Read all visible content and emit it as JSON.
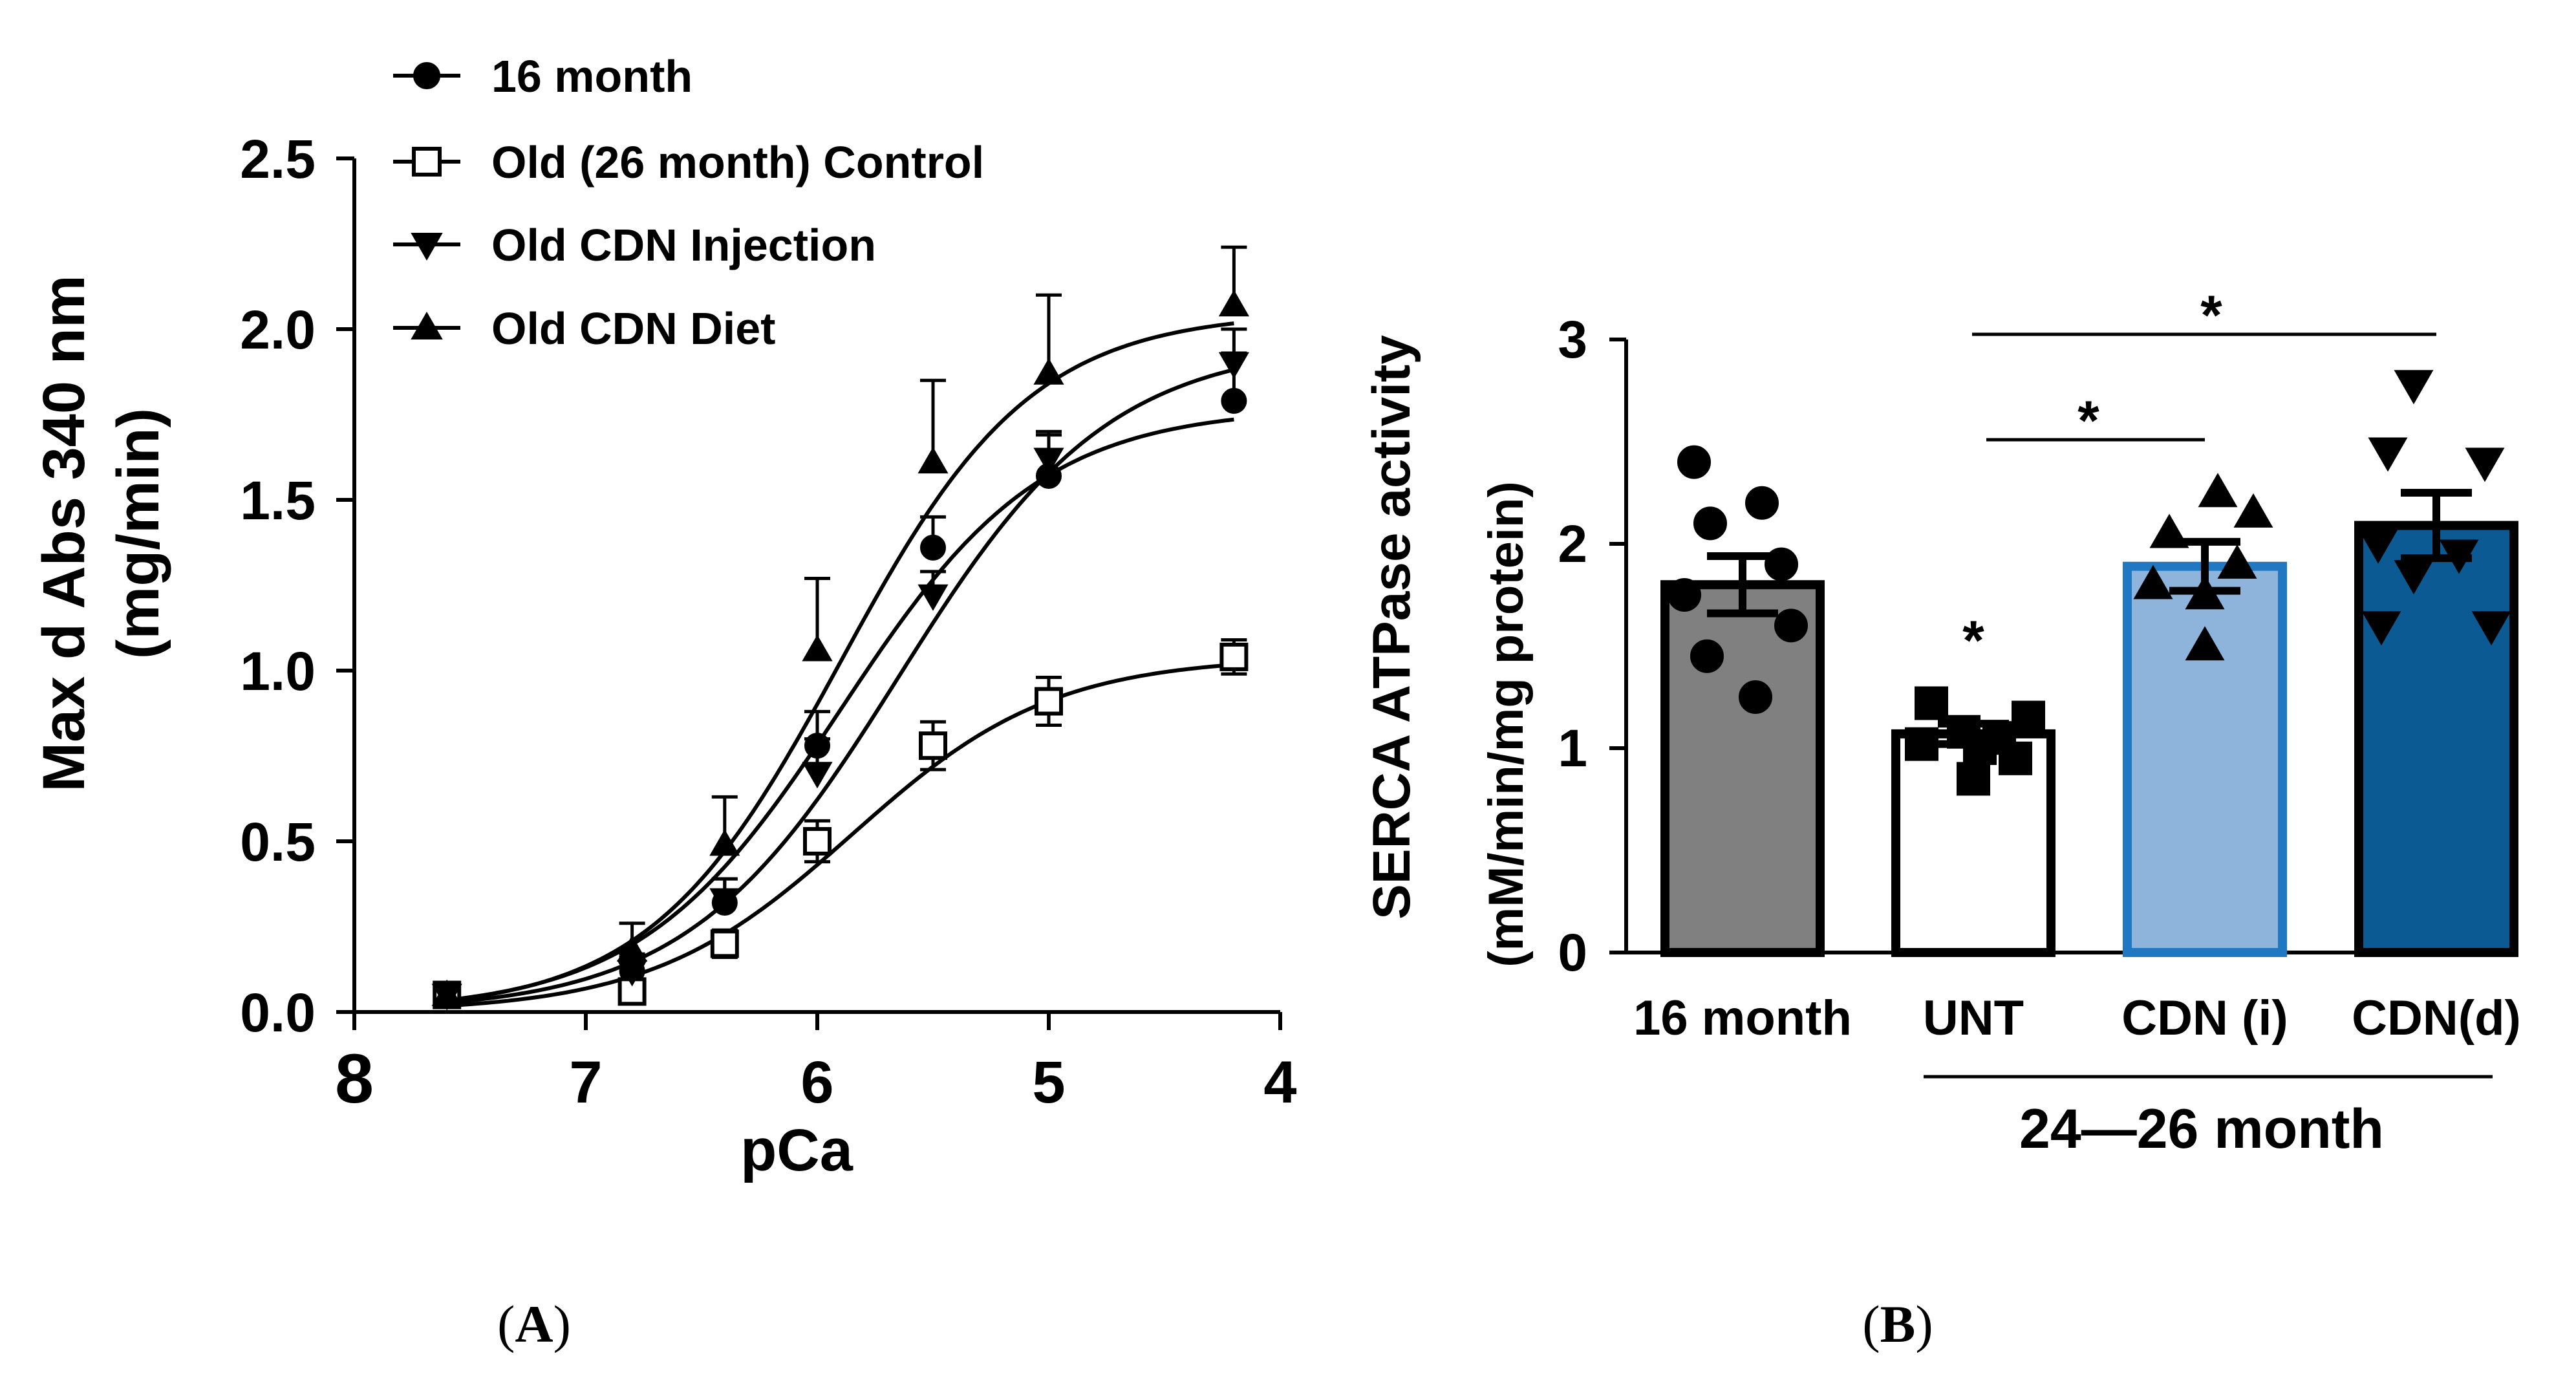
{
  "chart_data": [
    {
      "panel_label": "(A)",
      "panel_letter": "A",
      "type": "line",
      "title": "",
      "xlabel": "pCa",
      "ylabel_line1": "Max d Abs 340 nm",
      "ylabel_line2": "(mg/min)",
      "xlim": [
        8,
        4
      ],
      "ylim": [
        0,
        2.5
      ],
      "x_ticks": [
        8,
        7,
        6,
        5,
        4
      ],
      "x_tick_labels": [
        "8",
        "7",
        "6",
        "5",
        "4"
      ],
      "y_ticks": [
        0,
        0.5,
        1.0,
        1.5,
        2.0,
        2.5
      ],
      "y_tick_labels": [
        "0.0",
        "0.5",
        "1.0",
        "1.5",
        "2.0",
        "2.5"
      ],
      "x": [
        7.6,
        6.8,
        6.4,
        6.0,
        5.5,
        5.0,
        4.2
      ],
      "legend_position": "top-left",
      "series": [
        {
          "name": "16 month",
          "marker": "circle",
          "fill": "#000000",
          "y": [
            0.05,
            0.12,
            0.32,
            0.78,
            1.36,
            1.57,
            1.79
          ],
          "err": [
            0.02,
            0.05,
            0.07,
            0.1,
            0.09,
            0.12,
            0.14
          ],
          "fit": {
            "bottom": 0,
            "top": 1.77,
            "ec50": 5.9,
            "hill": 1.0
          }
        },
        {
          "name": "Old (26 month) Control",
          "marker": "square",
          "fill": "#ffffff",
          "y": [
            0.05,
            0.06,
            0.2,
            0.5,
            0.78,
            0.91,
            1.04
          ],
          "err": [
            0.02,
            0.03,
            0.04,
            0.06,
            0.07,
            0.07,
            0.05
          ],
          "fit": {
            "bottom": 0,
            "top": 1.04,
            "ec50": 5.85,
            "hill": 1.0
          }
        },
        {
          "name": "Old CDN Injection",
          "marker": "triangle-down",
          "fill": "#000000",
          "y": [
            0.05,
            0.12,
            0.33,
            0.7,
            1.22,
            1.62,
            1.9
          ],
          "err": [
            0.02,
            0.04,
            0.06,
            0.1,
            0.07,
            0.08,
            0.1
          ],
          "fit": {
            "bottom": 0,
            "top": 1.96,
            "ec50": 5.65,
            "hill": 0.95
          }
        },
        {
          "name": "Old CDN Diet",
          "marker": "triangle-up",
          "fill": "#000000",
          "y": [
            0.05,
            0.18,
            0.49,
            1.06,
            1.61,
            1.87,
            2.07
          ],
          "err": [
            0.03,
            0.08,
            0.14,
            0.21,
            0.24,
            0.23,
            0.17
          ],
          "fit": {
            "bottom": 0,
            "top": 2.05,
            "ec50": 5.9,
            "hill": 1.05
          }
        }
      ]
    },
    {
      "panel_label": "(B)",
      "panel_letter": "B",
      "type": "bar",
      "title": "",
      "ylabel_line1": "SERCA ATPase activity",
      "ylabel_line2": "(mM/min/mg protein)",
      "ylim": [
        0,
        3
      ],
      "y_ticks": [
        0,
        1,
        2,
        3
      ],
      "y_tick_labels": [
        "0",
        "1",
        "2",
        "3"
      ],
      "categories": [
        "16 month",
        "UNT",
        "CDN (i)",
        "CDN(d)"
      ],
      "group_label": "24—26 month",
      "values": [
        1.8,
        1.07,
        1.89,
        2.09
      ],
      "sem": [
        0.14,
        0.05,
        0.12,
        0.16
      ],
      "bar_fill": [
        "#808080",
        "#ffffff",
        "#8fb4dc",
        "#0b5a94"
      ],
      "bar_stroke": [
        "#000000",
        "#000000",
        "#1f78c1",
        "#000000"
      ],
      "point_markers": [
        "circle",
        "square",
        "triangle-up",
        "triangle-down"
      ],
      "points": [
        [
          2.4,
          2.2,
          2.1,
          1.9,
          1.75,
          1.6,
          1.45,
          1.25
        ],
        [
          1.22,
          1.15,
          1.08,
          1.05,
          1.02,
          1.0,
          0.95,
          0.85
        ],
        [
          2.25,
          2.15,
          2.05,
          1.9,
          1.8,
          1.75,
          1.5
        ],
        [
          2.78,
          2.45,
          2.4,
          2.0,
          1.95,
          1.85,
          1.6,
          1.6
        ]
      ],
      "annotations": {
        "unt_star": "*",
        "bracket_cdn_i": "*",
        "bracket_cdn_d": "*"
      }
    }
  ]
}
